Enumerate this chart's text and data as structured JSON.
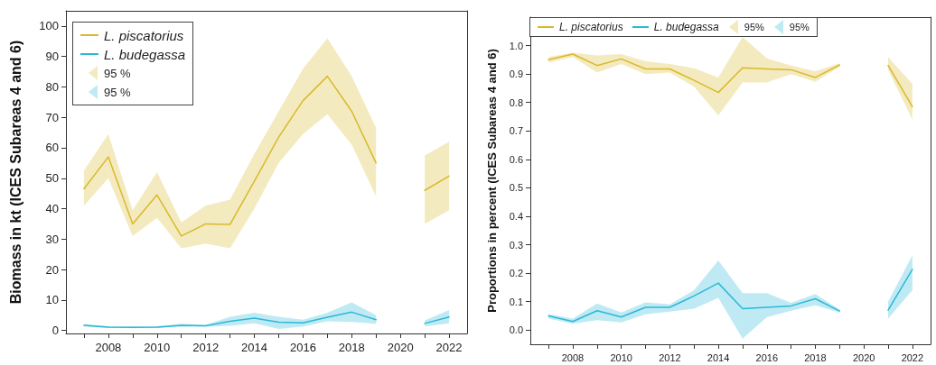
{
  "chart_data": [
    {
      "type": "line",
      "ylabel": "Biomass in kt (ICES Subareas 4 and 6)",
      "annotations": [
        "95 %",
        "95 %"
      ],
      "x": [
        2007,
        2008,
        2009,
        2010,
        2011,
        2012,
        2013,
        2014,
        2015,
        2016,
        2017,
        2018,
        2019,
        2020,
        2021,
        2022
      ],
      "xlim": [
        2006.26,
        2022.74
      ],
      "xticks": [
        {
          "value": 2007,
          "label": null
        },
        2008,
        {
          "value": 2009,
          "label": null
        },
        2010,
        {
          "value": 2011,
          "label": null
        },
        2012,
        {
          "value": 2013,
          "label": null
        },
        2014,
        {
          "value": 2015,
          "label": null
        },
        2016,
        {
          "value": 2017,
          "label": null
        },
        2018,
        {
          "value": 2019,
          "label": null
        },
        2020,
        {
          "value": 2021,
          "label": null
        },
        2022
      ],
      "ylim": [
        -1,
        105
      ],
      "yticks": [
        0,
        10,
        20,
        30,
        40,
        50,
        60,
        70,
        80,
        90,
        100
      ],
      "legend": "top left",
      "grid": false,
      "marker": "none",
      "line_style": "solid",
      "series": [
        {
          "name": "L. piscatorius",
          "color": "#d9b92a",
          "values": [
            46.5,
            57,
            35,
            44.5,
            31,
            35,
            34.8,
            49,
            63.5,
            75.5,
            83.5,
            72,
            55,
            null,
            46,
            50.7
          ],
          "lower": [
            41,
            50,
            31,
            37,
            27,
            28.5,
            27,
            40,
            55,
            64.5,
            71,
            61,
            44,
            null,
            35,
            39.5
          ],
          "upper": [
            52.5,
            64.5,
            39.5,
            52,
            35.5,
            41,
            43,
            58,
            72,
            86,
            96,
            83.5,
            66.5,
            null,
            57.5,
            62
          ]
        },
        {
          "name": "L. budegassa",
          "color": "#2bb8d8",
          "values": [
            1.7,
            1.1,
            1.0,
            1.1,
            1.7,
            1.5,
            3.0,
            4.0,
            2.7,
            2.5,
            4.3,
            6.0,
            3.5,
            null,
            2.3,
            4.4
          ],
          "lower": [
            1.3,
            0.8,
            0.7,
            0.8,
            1.2,
            1.2,
            1.5,
            2.3,
            0.5,
            1.3,
            3.0,
            2.8,
            2.2,
            null,
            1.3,
            2.3
          ],
          "upper": [
            2.1,
            1.4,
            1.3,
            1.4,
            2.2,
            1.8,
            4.5,
            5.8,
            4.5,
            3.5,
            5.8,
            9.2,
            5.0,
            null,
            3.3,
            6.7
          ]
        }
      ]
    },
    {
      "type": "line",
      "ylabel": "Proportions in percent (ICES Subareas 4 and 6)",
      "annotations": [
        "95%",
        "95%"
      ],
      "x": [
        2007,
        2008,
        2009,
        2010,
        2011,
        2012,
        2013,
        2014,
        2015,
        2016,
        2017,
        2018,
        2019,
        2020,
        2021,
        2022
      ],
      "xlim": [
        2006.25,
        2022.75
      ],
      "xticks": [
        {
          "value": 2007,
          "label": null
        },
        2008,
        {
          "value": 2009,
          "label": null
        },
        2010,
        {
          "value": 2011,
          "label": null
        },
        2012,
        {
          "value": 2013,
          "label": null
        },
        2014,
        {
          "value": 2015,
          "label": null
        },
        2016,
        {
          "value": 2017,
          "label": null
        },
        2018,
        {
          "value": 2019,
          "label": null
        },
        2020,
        {
          "value": 2021,
          "label": null
        },
        2022
      ],
      "ylim": [
        -0.05,
        1.1
      ],
      "yticks": [
        {
          "value": 0,
          "label": "0.0"
        },
        0.1,
        0.2,
        0.3,
        0.4,
        0.5,
        0.6,
        0.7,
        0.8,
        0.9,
        {
          "value": 1,
          "label": "1.0"
        }
      ],
      "legend": "top",
      "grid": false,
      "marker": "none",
      "line_style": "solid",
      "series": [
        {
          "name": "L. piscatorius",
          "color": "#d9b92a",
          "values": [
            0.95,
            0.97,
            0.93,
            0.953,
            0.918,
            0.918,
            0.878,
            0.835,
            0.922,
            0.918,
            0.915,
            0.888,
            0.932,
            null,
            0.93,
            0.785
          ],
          "lower": [
            0.94,
            0.96,
            0.905,
            0.935,
            0.9,
            0.905,
            0.855,
            0.755,
            0.87,
            0.87,
            0.9,
            0.873,
            0.925,
            null,
            0.915,
            0.74
          ],
          "upper": [
            0.96,
            0.975,
            0.965,
            0.97,
            0.945,
            0.935,
            0.92,
            0.888,
            1.03,
            0.955,
            0.93,
            0.91,
            0.938,
            null,
            0.96,
            0.865
          ]
        },
        {
          "name": "L. budegassa",
          "color": "#2bb8d8",
          "values": [
            0.05,
            0.03,
            0.068,
            0.046,
            0.08,
            0.08,
            0.12,
            0.165,
            0.075,
            0.08,
            0.085,
            0.11,
            0.067,
            null,
            0.07,
            0.213
          ],
          "lower": [
            0.04,
            0.022,
            0.035,
            0.027,
            0.055,
            0.065,
            0.075,
            0.113,
            -0.03,
            0.045,
            0.068,
            0.087,
            0.062,
            null,
            0.04,
            0.14
          ],
          "upper": [
            0.056,
            0.04,
            0.093,
            0.062,
            0.097,
            0.09,
            0.14,
            0.245,
            0.13,
            0.13,
            0.096,
            0.127,
            0.072,
            null,
            0.1,
            0.263
          ]
        }
      ]
    }
  ]
}
